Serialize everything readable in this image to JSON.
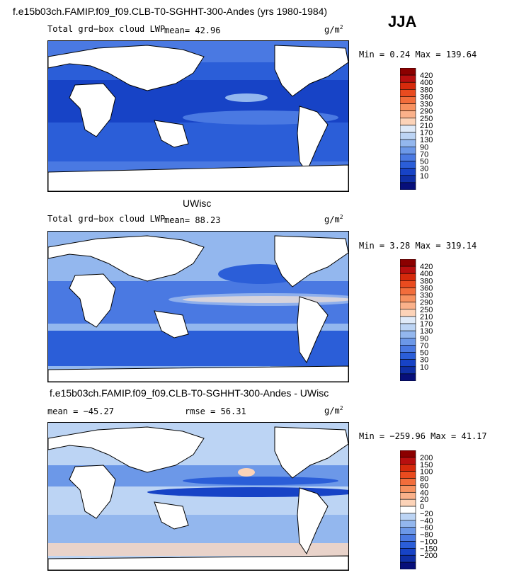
{
  "season": "JJA",
  "panels": [
    {
      "title": "f.e15b03ch.FAMIP.f09_f09.CLB-T0-SGHHT-300-Andes (yrs 1980-1984)",
      "left_label": "Total grd−box cloud LWP",
      "stat1": "mean=   42.96",
      "stat2": "",
      "unit_base": "g/m",
      "unit_exp": "2",
      "minmax": "Min =    0.24  Max = 139.64"
    },
    {
      "title": "UWisc",
      "left_label": "Total grd−box cloud LWP",
      "stat1": "mean=   88.23",
      "stat2": "",
      "unit_base": "g/m",
      "unit_exp": "2",
      "minmax": "Min =    3.28  Max = 319.14"
    },
    {
      "title": "f.e15b03ch.FAMIP.f09_f09.CLB-T0-SGHHT-300-Andes - UWisc",
      "left_label": "",
      "stat1": "mean = −45.27",
      "stat2": "rmse =   56.31",
      "unit_base": "g/m",
      "unit_exp": "2",
      "minmax": "Min = −259.96  Max =   41.17"
    }
  ],
  "chart_data": [
    {
      "type": "heatmap",
      "title": "f.e15b03ch.FAMIP.f09_f09.CLB-T0-SGHHT-300-Andes (yrs 1980-1984)",
      "variable": "Total grd-box cloud LWP",
      "units": "g/m2",
      "mean": 42.96,
      "min": 0.24,
      "max": 139.64,
      "colorbar_levels": [
        "420",
        "400",
        "380",
        "360",
        "330",
        "290",
        "250",
        "210",
        "170",
        "130",
        "90",
        "70",
        "50",
        "30",
        "10"
      ],
      "colorbar_colors": [
        "#8b0000",
        "#b80f0f",
        "#d62a0c",
        "#e94b1f",
        "#f26d3b",
        "#f7915f",
        "#fab18a",
        "#fcd3b8",
        "#dfeaf8",
        "#bcd4f4",
        "#93b7ee",
        "#6c98e8",
        "#4a79e2",
        "#2b5ed8",
        "#1743c6",
        "#0f2fa6",
        "#070f7a"
      ]
    },
    {
      "type": "heatmap",
      "title": "UWisc",
      "variable": "Total grd-box cloud LWP",
      "units": "g/m2",
      "mean": 88.23,
      "min": 3.28,
      "max": 319.14,
      "colorbar_levels": [
        "420",
        "400",
        "380",
        "360",
        "330",
        "290",
        "250",
        "210",
        "170",
        "130",
        "90",
        "70",
        "50",
        "30",
        "10"
      ],
      "colorbar_colors": [
        "#8b0000",
        "#b80f0f",
        "#d62a0c",
        "#e94b1f",
        "#f26d3b",
        "#f7915f",
        "#fab18a",
        "#fcd3b8",
        "#dfeaf8",
        "#bcd4f4",
        "#93b7ee",
        "#6c98e8",
        "#4a79e2",
        "#2b5ed8",
        "#1743c6",
        "#0f2fa6",
        "#070f7a"
      ]
    },
    {
      "type": "heatmap",
      "title": "f.e15b03ch.FAMIP.f09_f09.CLB-T0-SGHHT-300-Andes - UWisc",
      "units": "g/m2",
      "mean": -45.27,
      "rmse": 56.31,
      "min": -259.96,
      "max": 41.17,
      "colorbar_levels": [
        "200",
        "150",
        "100",
        "80",
        "60",
        "40",
        "20",
        "0",
        "−20",
        "−40",
        "−60",
        "−80",
        "−100",
        "−150",
        "−200"
      ],
      "colorbar_colors": [
        "#8b0000",
        "#b80f0f",
        "#d62a0c",
        "#e94b1f",
        "#f26d3b",
        "#f7915f",
        "#fab18a",
        "#fcd3b8",
        "#ffffff",
        "#bcd4f4",
        "#93b7ee",
        "#6c98e8",
        "#4a79e2",
        "#2b5ed8",
        "#1743c6",
        "#0f2fa6",
        "#070f7a"
      ]
    }
  ]
}
